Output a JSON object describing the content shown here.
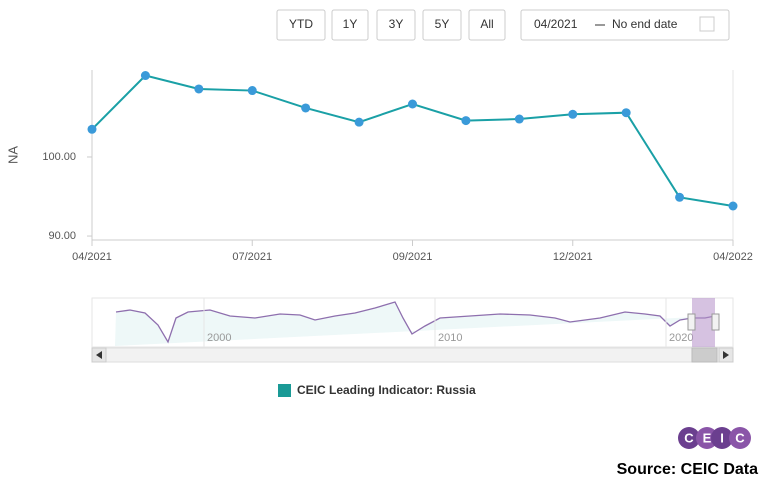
{
  "range_buttons": [
    "YTD",
    "1Y",
    "3Y",
    "5Y",
    "All"
  ],
  "date_range": {
    "start": "04/2021",
    "end": "No end date"
  },
  "navigator": {
    "labels": [
      "2000",
      "2010",
      "2020"
    ]
  },
  "logo": [
    "C",
    "E",
    "I",
    "C"
  ],
  "source": "Source: CEIC Data",
  "chart_data": {
    "type": "line",
    "y_label": "NA",
    "categories": [
      "04/2021",
      null,
      null,
      "07/2021",
      null,
      null,
      "09/2021",
      null,
      null,
      "12/2021",
      null,
      null,
      "04/2022"
    ],
    "series": [
      {
        "name": "CEIC Leading Indicator: Russia",
        "color": "#1aa0a6",
        "marker_color": "#3a9ad9",
        "legend_color": "#1a9a96",
        "values": [
          103.5,
          110.3,
          108.6,
          108.4,
          106.2,
          104.4,
          106.7,
          104.6,
          104.8,
          105.4,
          105.6,
          94.9,
          93.8
        ]
      }
    ],
    "ylim": [
      89.5,
      111
    ],
    "yticks": [
      {
        "value": 90,
        "label": "90.00"
      },
      {
        "value": 100,
        "label": "100.00"
      }
    ],
    "grid": false
  }
}
